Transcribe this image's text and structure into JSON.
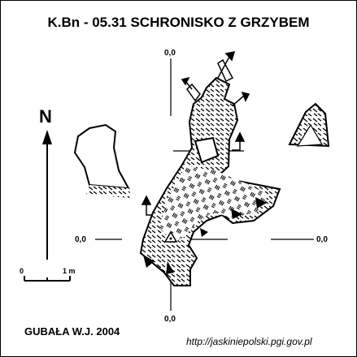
{
  "title": "K.Bn - 05.31 SCHRONISKO Z GRZYBEM",
  "north_label": "N",
  "grid_labels": {
    "top": "0,0",
    "bottom": "0,0",
    "left": "0,0",
    "right": "0,0"
  },
  "scale": {
    "start_label": "0",
    "end_label": "1 m"
  },
  "author": "GUBAŁA W.J. 2004",
  "url": "http://jaskiniepolski.pgi.gov.pl",
  "colors": {
    "ink": "#000000",
    "paper": "#ffffff"
  }
}
